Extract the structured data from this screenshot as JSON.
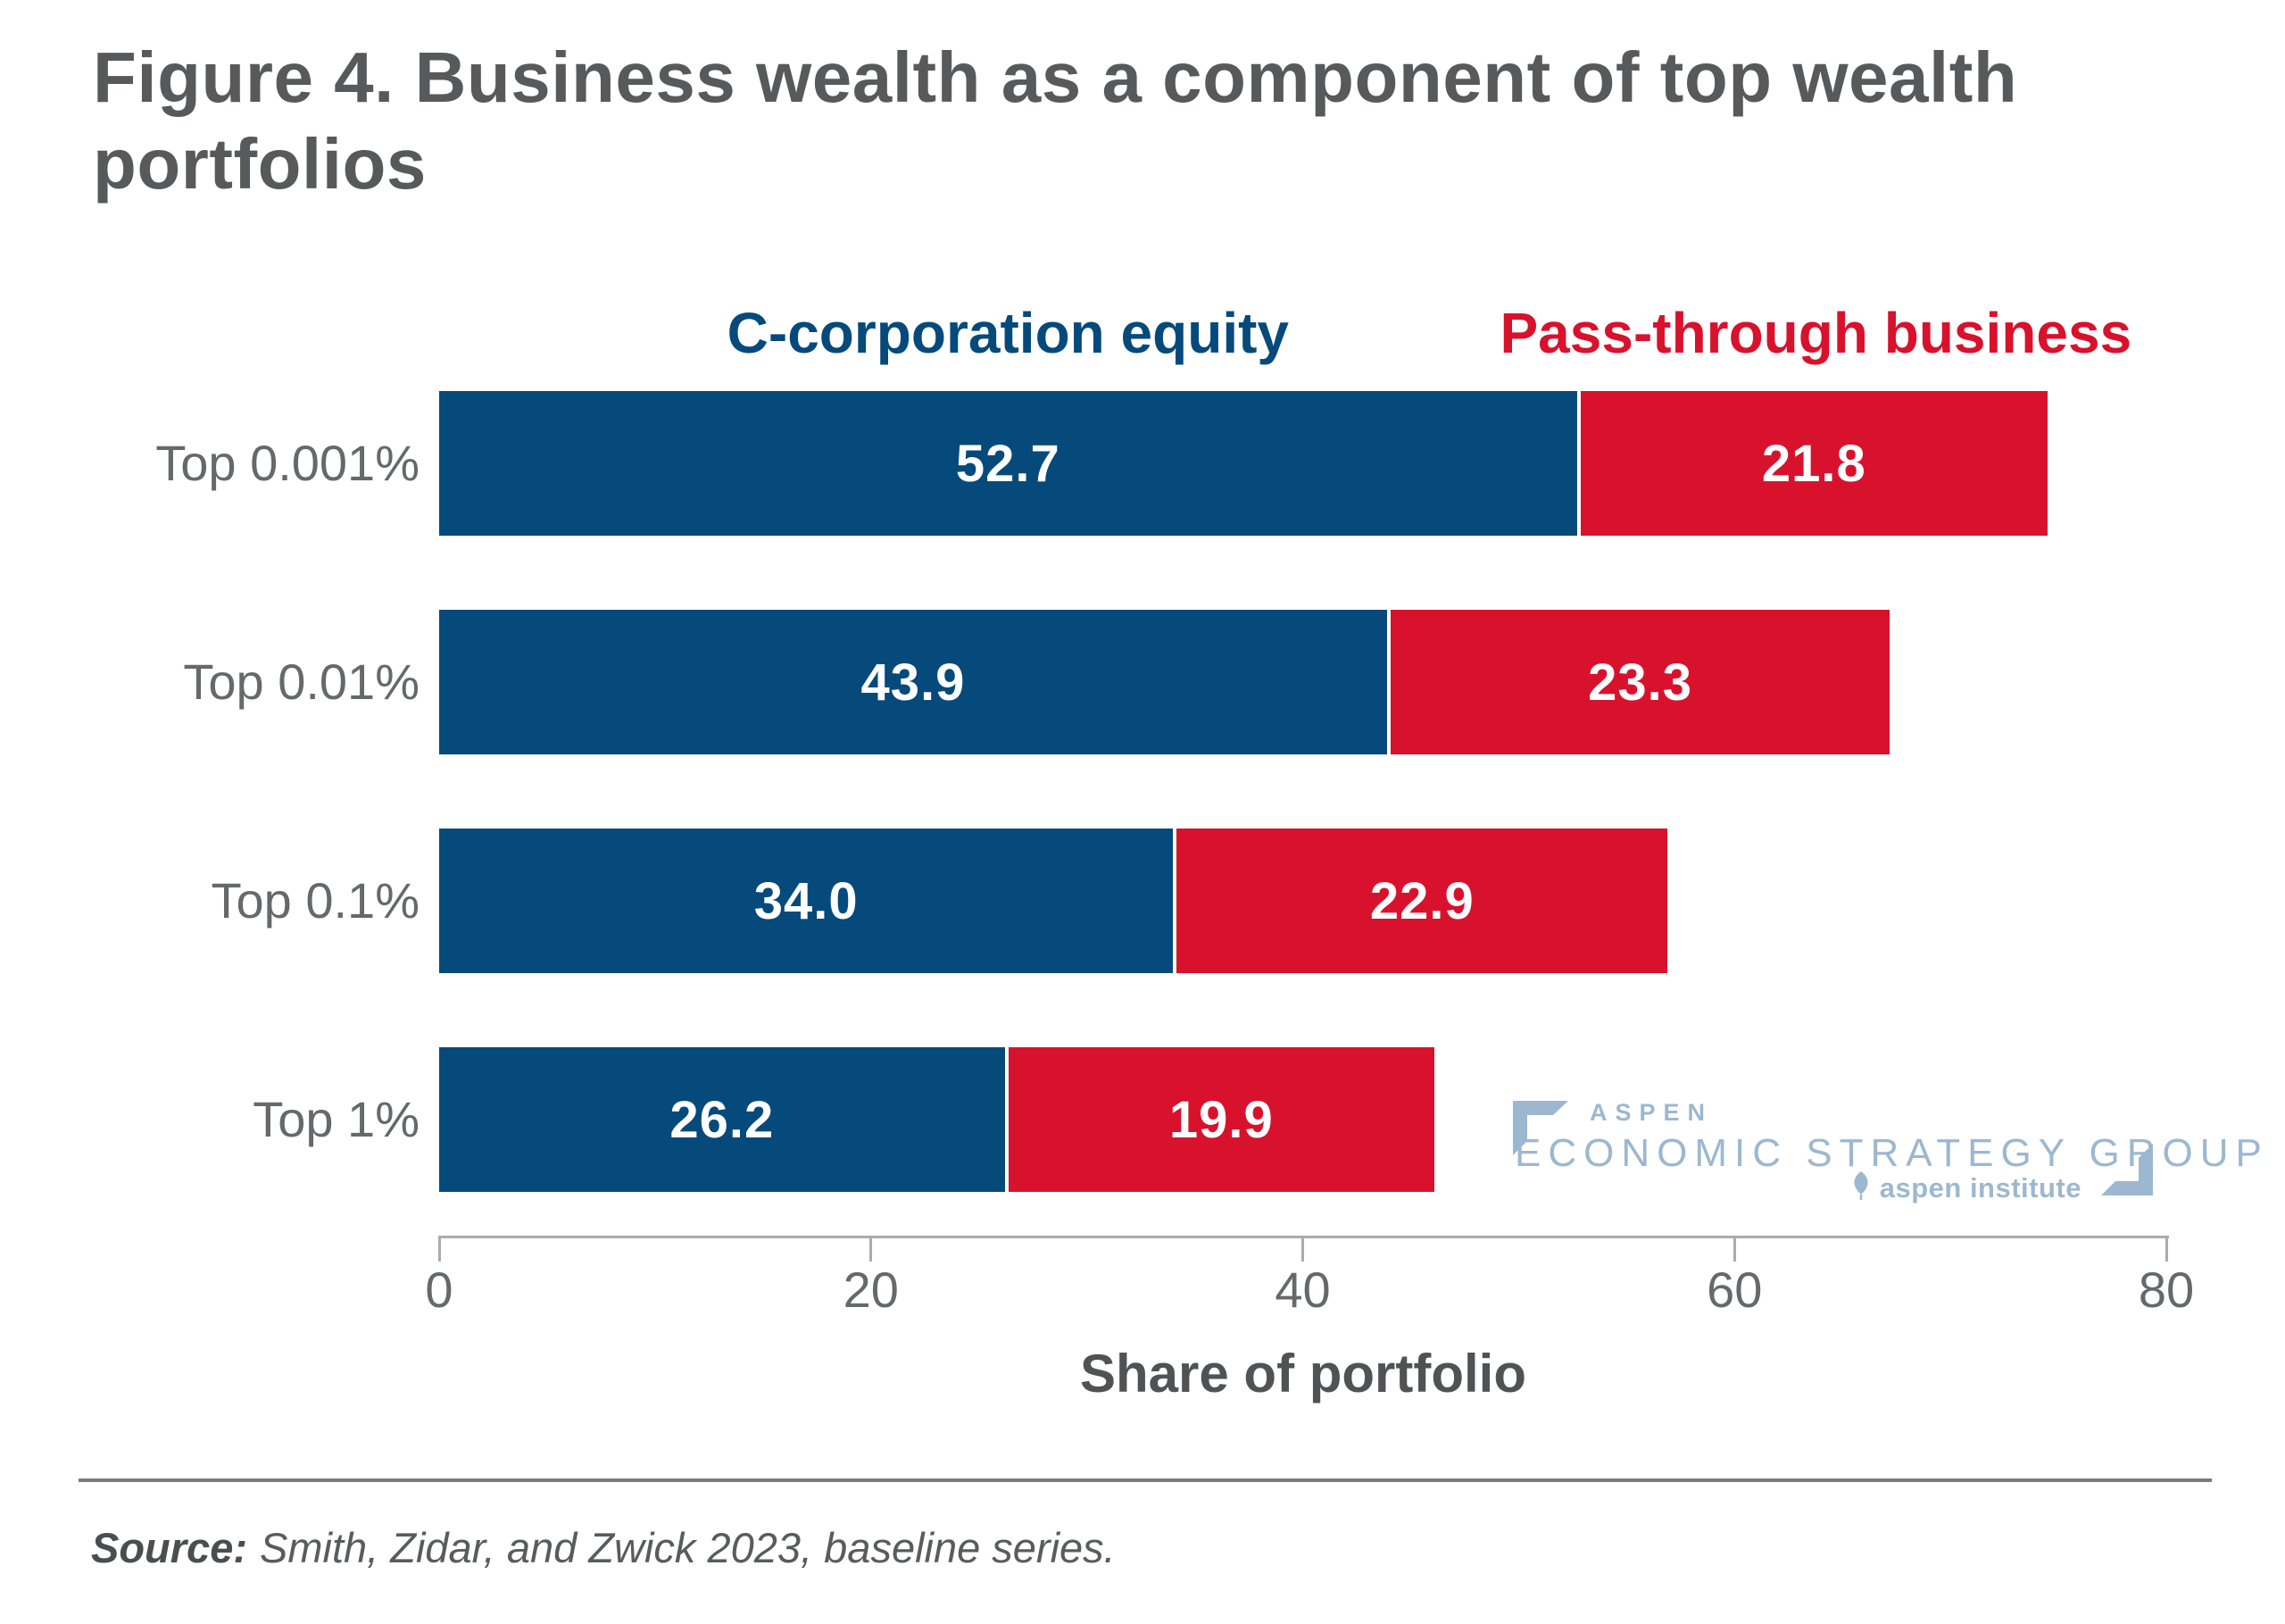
{
  "figure": {
    "title": "Figure 4. Business wealth as a component of top wealth portfolios",
    "source_label": "Source:",
    "source_text": "Smith, Zidar, and Zwick 2023, baseline series."
  },
  "chart_data": {
    "type": "bar",
    "orientation": "horizontal",
    "stacked": true,
    "title": "Figure 4. Business wealth as a component of top wealth portfolios",
    "categories": [
      "Top 0.001%",
      "Top 0.01%",
      "Top 0.1%",
      "Top 1%"
    ],
    "series": [
      {
        "name": "C-corporation equity",
        "color": "#064a7c",
        "values": [
          52.7,
          43.9,
          34.0,
          26.2
        ]
      },
      {
        "name": "Pass-through business",
        "color": "#d8122d",
        "values": [
          21.8,
          23.3,
          22.9,
          19.9
        ]
      }
    ],
    "xlabel": "Share of portfolio",
    "xlim": [
      0,
      80
    ],
    "xticks": [
      0,
      20,
      40,
      60,
      80
    ],
    "grid": false,
    "legend_position": "top-over-first-row-segments",
    "value_labels": "inside-white"
  },
  "logo": {
    "org": "ASPEN",
    "group": "ECONOMIC STRATEGY GROUP",
    "institute": "aspen institute"
  },
  "colors": {
    "c_corporation_blue": "#064a7c",
    "pass_through_red": "#d8122d",
    "title_gray": "#58595b",
    "label_gray": "#66686a",
    "axis_gray": "#a9abae",
    "logo_blue": "#9cb8d0"
  }
}
